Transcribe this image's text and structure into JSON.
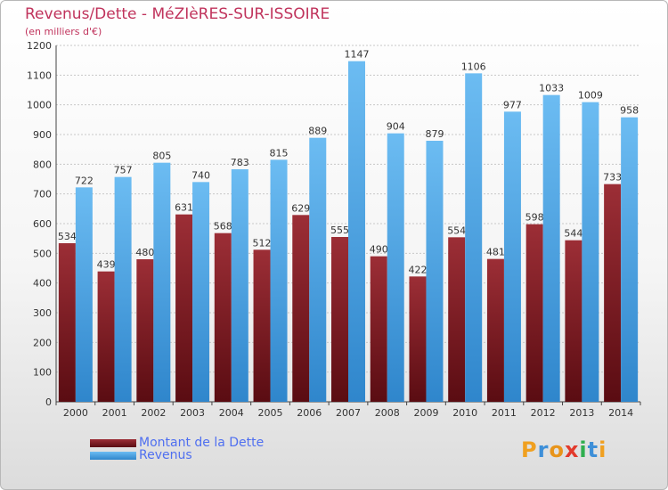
{
  "chart_data": {
    "type": "bar",
    "title": "Revenus/Dette - MéZIèRES-SUR-ISSOIRE",
    "subtitle": "(en milliers d'€)",
    "categories": [
      "2000",
      "2001",
      "2002",
      "2003",
      "2004",
      "2005",
      "2006",
      "2007",
      "2008",
      "2009",
      "2010",
      "2011",
      "2012",
      "2013",
      "2014"
    ],
    "series": [
      {
        "name": "Montant de la Dette",
        "color": "#7a1c24",
        "values": [
          534,
          439,
          480,
          631,
          568,
          512,
          629,
          555,
          490,
          422,
          554,
          481,
          598,
          544,
          733
        ]
      },
      {
        "name": "Revenus",
        "color": "#4aa6e8",
        "values": [
          722,
          757,
          805,
          740,
          783,
          815,
          889,
          1147,
          904,
          879,
          1106,
          977,
          1033,
          1009,
          958
        ]
      }
    ],
    "ylim": [
      0,
      1200
    ],
    "yticks": [
      0,
      100,
      200,
      300,
      400,
      500,
      600,
      700,
      800,
      900,
      1000,
      1100,
      1200
    ],
    "grid": true,
    "legend_position": "bottom-left"
  },
  "legend": {
    "debt_label": "Montant de la Dette",
    "revenue_label": "Revenus"
  },
  "logo": {
    "letters": [
      "P",
      "r",
      "o",
      "x",
      "i",
      "t",
      "i"
    ],
    "colors": [
      "#f0a020",
      "#3d8fd8",
      "#e8941a",
      "#e23a2c",
      "#2fae4e",
      "#3d8fd8",
      "#f0a020"
    ]
  }
}
